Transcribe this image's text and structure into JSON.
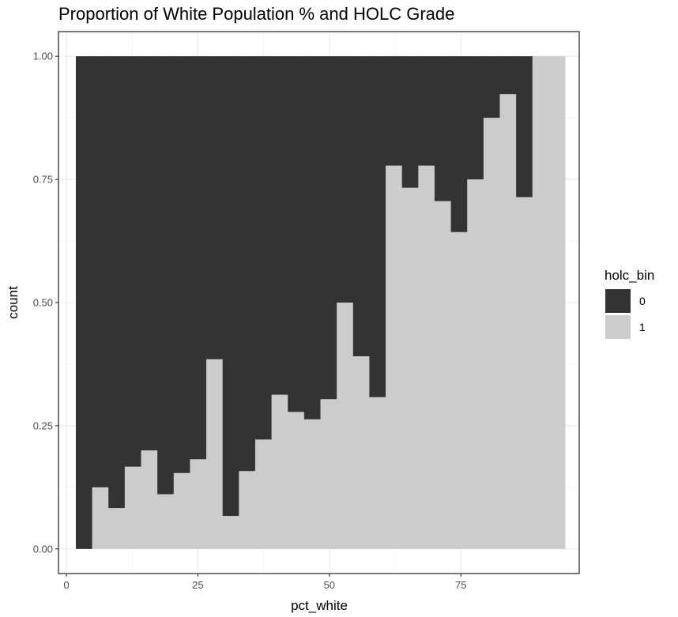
{
  "chart_data": {
    "type": "bar",
    "title": "Proportion of White Population % and HOLC Grade",
    "xlabel": "pct_white",
    "ylabel": "count",
    "xlim": [
      -1.5,
      97.5
    ],
    "ylim": [
      -0.05,
      1.05
    ],
    "x_ticks": [
      0,
      25,
      50,
      75
    ],
    "x_tick_labels": [
      "0",
      "25",
      "50",
      "75"
    ],
    "y_ticks": [
      0,
      0.25,
      0.5,
      0.75,
      1.0
    ],
    "y_tick_labels": [
      "0.00",
      "0.25",
      "0.50",
      "0.75",
      "1.00"
    ],
    "grid": true,
    "position": "fill",
    "bin_width": 3.1,
    "bin_starts": [
      1.8,
      4.9,
      8.0,
      11.1,
      14.2,
      17.3,
      20.4,
      23.5,
      26.6,
      29.7,
      32.8,
      35.9,
      39.0,
      42.1,
      45.2,
      48.3,
      51.4,
      54.5,
      57.6,
      60.7,
      63.8,
      66.9,
      70.0,
      73.1,
      76.2,
      79.3,
      82.4,
      85.5,
      88.6,
      91.7
    ],
    "series": [
      {
        "name": "1",
        "color": "#cccccc",
        "values": [
          0.0,
          0.125,
          0.083,
          0.167,
          0.2,
          0.111,
          0.154,
          0.182,
          0.385,
          0.067,
          0.158,
          0.222,
          0.313,
          0.278,
          0.263,
          0.304,
          0.5,
          0.391,
          0.308,
          0.778,
          0.733,
          0.778,
          0.706,
          0.643,
          0.75,
          0.875,
          0.923,
          0.714,
          1.0,
          1.0
        ]
      },
      {
        "name": "0",
        "color": "#333333",
        "values": [
          1.0,
          0.875,
          0.917,
          0.833,
          0.8,
          0.889,
          0.846,
          0.818,
          0.615,
          0.933,
          0.842,
          0.778,
          0.687,
          0.722,
          0.737,
          0.696,
          0.5,
          0.609,
          0.692,
          0.222,
          0.267,
          0.222,
          0.294,
          0.357,
          0.25,
          0.125,
          0.077,
          0.286,
          0.0,
          0.0
        ]
      }
    ],
    "legend": {
      "title": "holc_bin",
      "position": "right",
      "entries": [
        {
          "label": "0",
          "color": "#333333"
        },
        {
          "label": "1",
          "color": "#cccccc"
        }
      ]
    }
  }
}
